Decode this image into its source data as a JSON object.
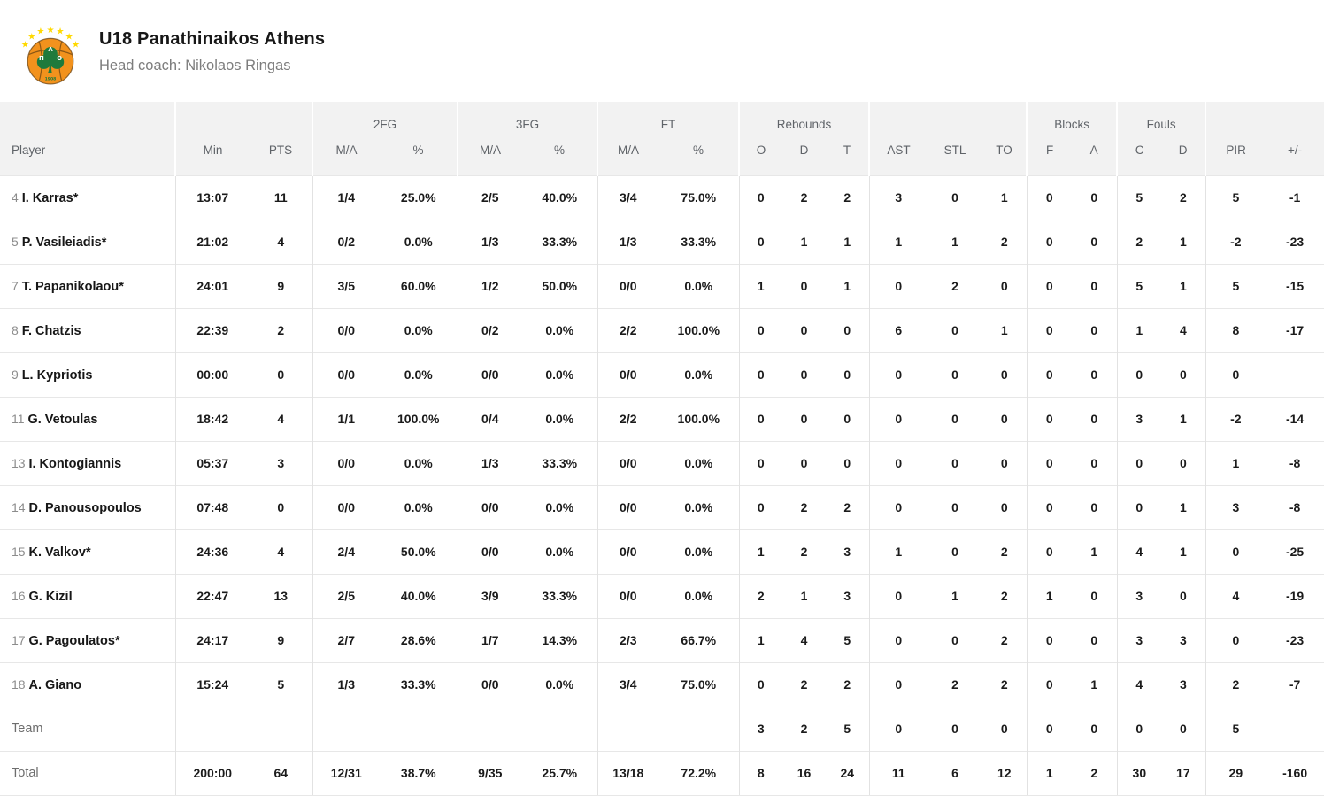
{
  "team_header": {
    "title": "U18 Panathinaikos Athens",
    "coach_label": "Head coach: Nikolaos Ringas"
  },
  "logo": {
    "letters": [
      "Π",
      "A",
      "O"
    ],
    "year": "1908",
    "star_count": 7
  },
  "colors": {
    "logo_orange": "#F2921D",
    "logo_green": "#1E7A3C",
    "star_yellow": "#FFD900",
    "seam_brown": "#6b4413",
    "header_bg": "#f2f2f2",
    "header_text": "#5f6368",
    "row_border": "#e7e7e7"
  },
  "table": {
    "groups": {
      "fg2": "2FG",
      "fg3": "3FG",
      "ft": "FT",
      "rebounds": "Rebounds",
      "blocks": "Blocks",
      "fouls": "Fouls"
    },
    "columns": {
      "player": "Player",
      "min": "Min",
      "pts": "PTS",
      "ma": "M/A",
      "pct": "%",
      "o": "O",
      "d": "D",
      "t": "T",
      "ast": "AST",
      "stl": "STL",
      "to": "TO",
      "f": "F",
      "a": "A",
      "c": "C",
      "pir": "PIR",
      "pm": "+/-"
    },
    "rows": [
      {
        "number": "4",
        "name": "I. Karras*",
        "stats": [
          "13:07",
          "11",
          "1/4",
          "25.0%",
          "2/5",
          "40.0%",
          "3/4",
          "75.0%",
          "0",
          "2",
          "2",
          "3",
          "0",
          "1",
          "0",
          "0",
          "5",
          "2",
          "5",
          "-1"
        ]
      },
      {
        "number": "5",
        "name": "P. Vasileiadis*",
        "stats": [
          "21:02",
          "4",
          "0/2",
          "0.0%",
          "1/3",
          "33.3%",
          "1/3",
          "33.3%",
          "0",
          "1",
          "1",
          "1",
          "1",
          "2",
          "0",
          "0",
          "2",
          "1",
          "-2",
          "-23"
        ]
      },
      {
        "number": "7",
        "name": "T. Papanikolaou*",
        "stats": [
          "24:01",
          "9",
          "3/5",
          "60.0%",
          "1/2",
          "50.0%",
          "0/0",
          "0.0%",
          "1",
          "0",
          "1",
          "0",
          "2",
          "0",
          "0",
          "0",
          "5",
          "1",
          "5",
          "-15"
        ]
      },
      {
        "number": "8",
        "name": "F. Chatzis",
        "stats": [
          "22:39",
          "2",
          "0/0",
          "0.0%",
          "0/2",
          "0.0%",
          "2/2",
          "100.0%",
          "0",
          "0",
          "0",
          "6",
          "0",
          "1",
          "0",
          "0",
          "1",
          "4",
          "8",
          "-17"
        ]
      },
      {
        "number": "9",
        "name": "L. Kypriotis",
        "stats": [
          "00:00",
          "0",
          "0/0",
          "0.0%",
          "0/0",
          "0.0%",
          "0/0",
          "0.0%",
          "0",
          "0",
          "0",
          "0",
          "0",
          "0",
          "0",
          "0",
          "0",
          "0",
          "0",
          ""
        ]
      },
      {
        "number": "11",
        "name": "G. Vetoulas",
        "stats": [
          "18:42",
          "4",
          "1/1",
          "100.0%",
          "0/4",
          "0.0%",
          "2/2",
          "100.0%",
          "0",
          "0",
          "0",
          "0",
          "0",
          "0",
          "0",
          "0",
          "3",
          "1",
          "-2",
          "-14"
        ]
      },
      {
        "number": "13",
        "name": "I. Kontogiannis",
        "stats": [
          "05:37",
          "3",
          "0/0",
          "0.0%",
          "1/3",
          "33.3%",
          "0/0",
          "0.0%",
          "0",
          "0",
          "0",
          "0",
          "0",
          "0",
          "0",
          "0",
          "0",
          "0",
          "1",
          "-8"
        ]
      },
      {
        "number": "14",
        "name": "D. Panousopoulos",
        "stats": [
          "07:48",
          "0",
          "0/0",
          "0.0%",
          "0/0",
          "0.0%",
          "0/0",
          "0.0%",
          "0",
          "2",
          "2",
          "0",
          "0",
          "0",
          "0",
          "0",
          "0",
          "1",
          "3",
          "-8"
        ]
      },
      {
        "number": "15",
        "name": "K. Valkov*",
        "stats": [
          "24:36",
          "4",
          "2/4",
          "50.0%",
          "0/0",
          "0.0%",
          "0/0",
          "0.0%",
          "1",
          "2",
          "3",
          "1",
          "0",
          "2",
          "0",
          "1",
          "4",
          "1",
          "0",
          "-25"
        ]
      },
      {
        "number": "16",
        "name": "G. Kizil",
        "stats": [
          "22:47",
          "13",
          "2/5",
          "40.0%",
          "3/9",
          "33.3%",
          "0/0",
          "0.0%",
          "2",
          "1",
          "3",
          "0",
          "1",
          "2",
          "1",
          "0",
          "3",
          "0",
          "4",
          "-19"
        ]
      },
      {
        "number": "17",
        "name": "G. Pagoulatos*",
        "stats": [
          "24:17",
          "9",
          "2/7",
          "28.6%",
          "1/7",
          "14.3%",
          "2/3",
          "66.7%",
          "1",
          "4",
          "5",
          "0",
          "0",
          "2",
          "0",
          "0",
          "3",
          "3",
          "0",
          "-23"
        ]
      },
      {
        "number": "18",
        "name": "A. Giano",
        "stats": [
          "15:24",
          "5",
          "1/3",
          "33.3%",
          "0/0",
          "0.0%",
          "3/4",
          "75.0%",
          "0",
          "2",
          "2",
          "0",
          "2",
          "2",
          "0",
          "1",
          "4",
          "3",
          "2",
          "-7"
        ]
      },
      {
        "label": "Team",
        "stats": [
          "",
          "",
          "",
          "",
          "",
          "",
          "",
          "",
          "3",
          "2",
          "5",
          "0",
          "0",
          "0",
          "0",
          "0",
          "0",
          "0",
          "5",
          ""
        ]
      },
      {
        "label": "Total",
        "stats": [
          "200:00",
          "64",
          "12/31",
          "38.7%",
          "9/35",
          "25.7%",
          "13/18",
          "72.2%",
          "8",
          "16",
          "24",
          "11",
          "6",
          "12",
          "1",
          "2",
          "30",
          "17",
          "29",
          "-160"
        ]
      }
    ]
  }
}
